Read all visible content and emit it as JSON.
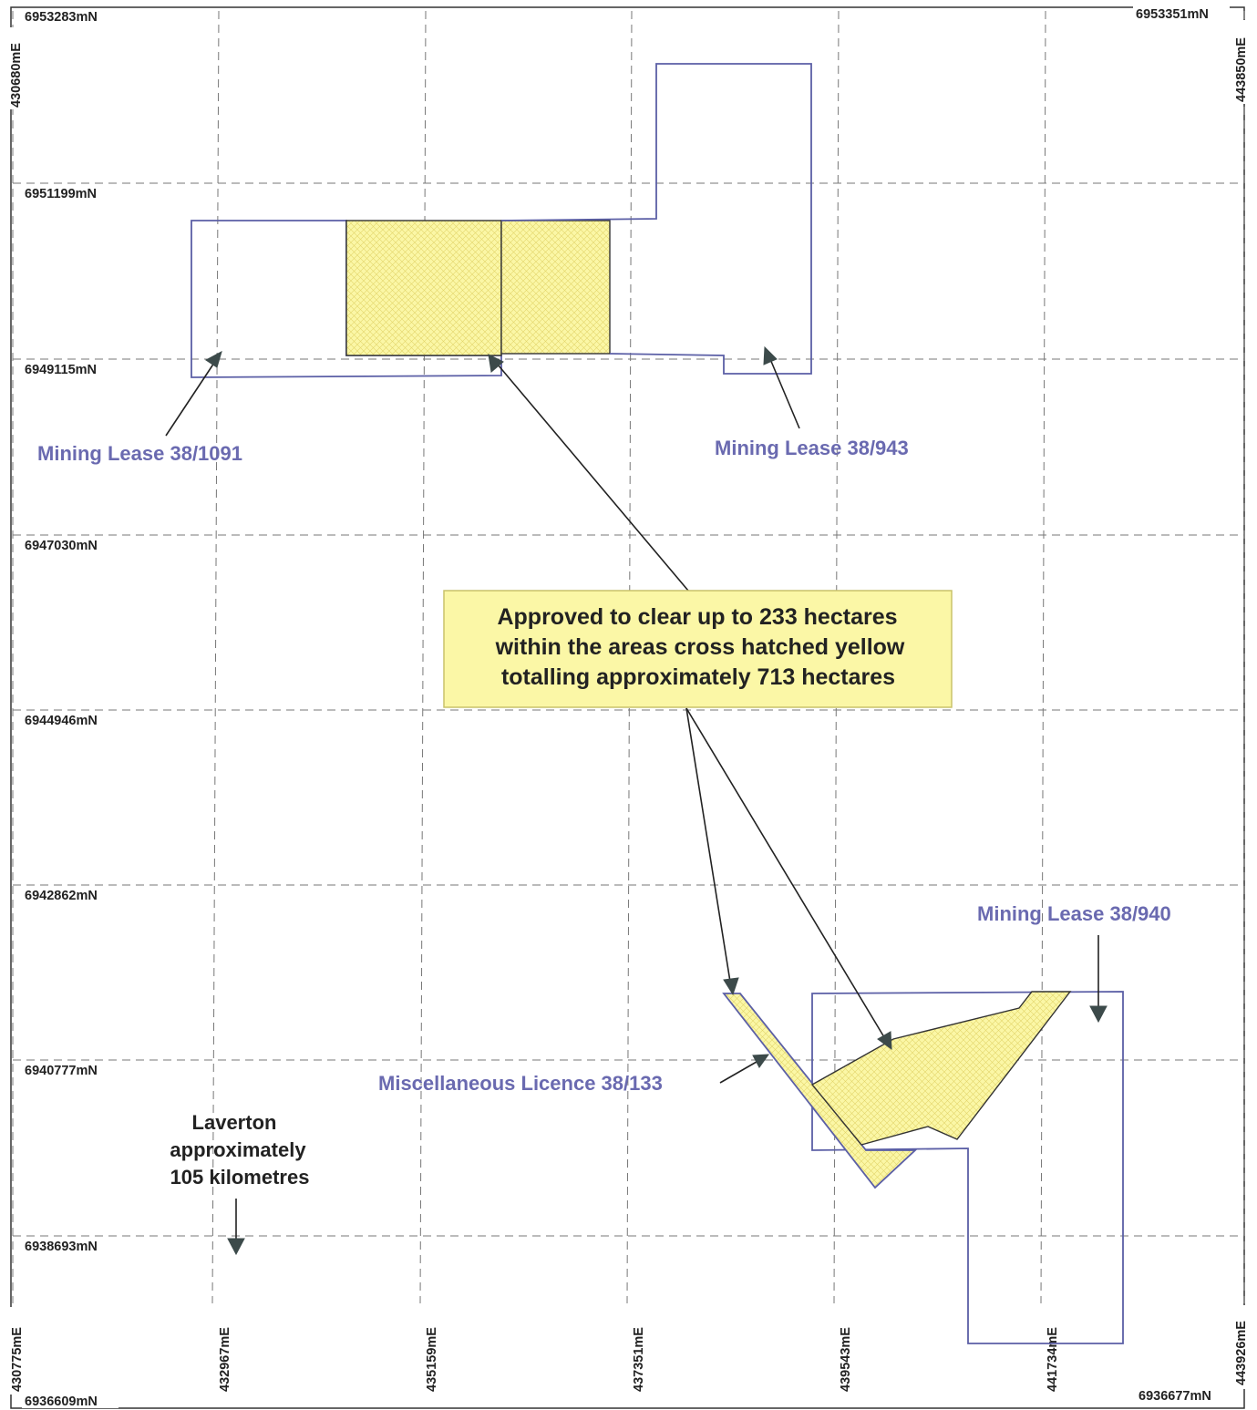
{
  "northings_left": [
    "6953283mN",
    "6951199mN",
    "6949115mN",
    "6947030mN",
    "6944946mN",
    "6942862mN",
    "6940777mN",
    "6938693mN",
    "6936609mN"
  ],
  "northing_top_right": "6953351mN",
  "northing_bottom_right": "6936677mN",
  "eastings_bottom": [
    "430775mE",
    "432967mE",
    "435159mE",
    "437351mE",
    "439543mE",
    "441734mE",
    "443926mE"
  ],
  "easting_top_left": "430680mE",
  "easting_top_right": "443850mE",
  "lease_labels": {
    "ml_1091": "Mining Lease 38/1091",
    "ml_943": "Mining Lease 38/943",
    "ml_940": "Mining Lease 38/940",
    "misc_133": "Miscellaneous Licence 38/133"
  },
  "callout": {
    "lines": [
      "Approved to clear up to 233 hectares",
      "within the areas cross hatched yellow",
      "totalling approximately 713 hectares"
    ]
  },
  "laverton": {
    "lines": [
      "Laverton",
      "approximately",
      "105 kilometres"
    ]
  },
  "colors": {
    "lease_outline": "#5b5fa6",
    "hatch_fill": "#fbf7a6",
    "callout_fill": "#fbf7a6"
  }
}
